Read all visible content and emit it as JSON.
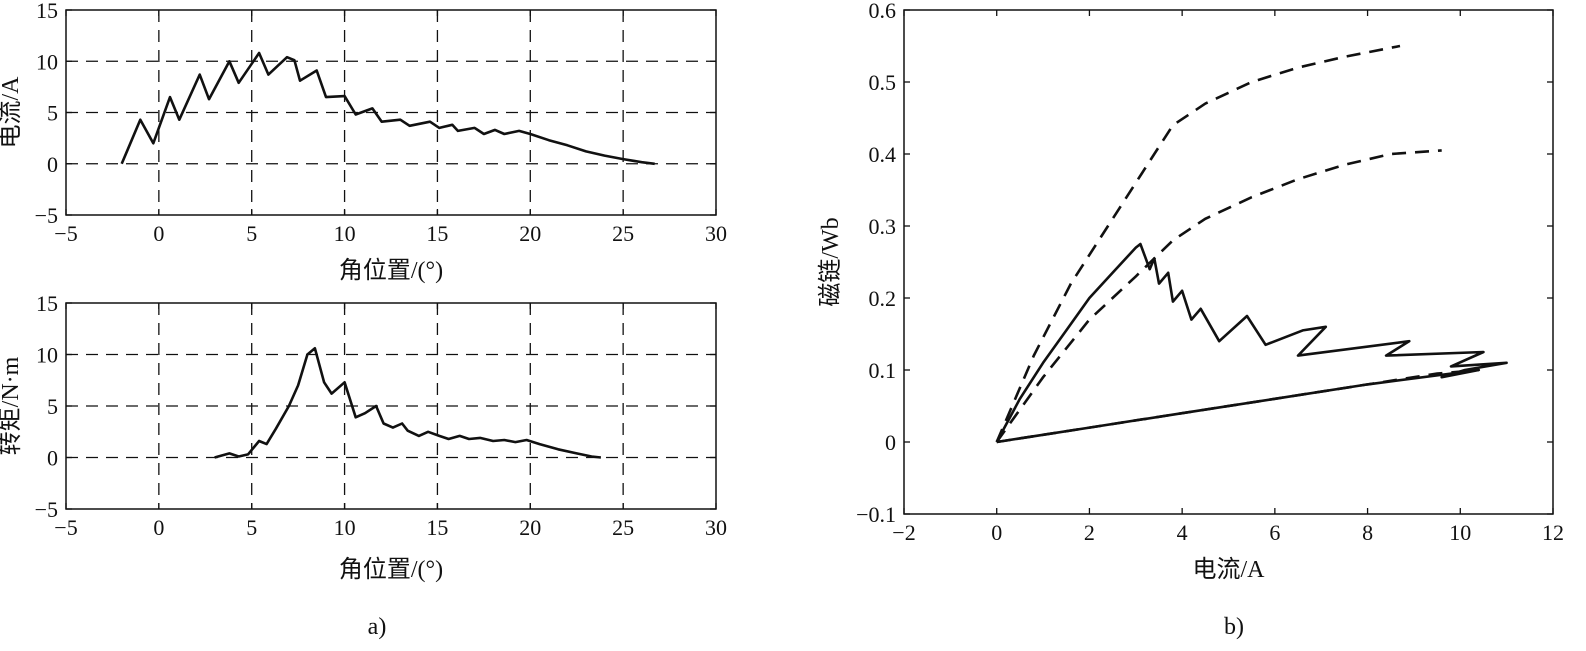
{
  "captions": {
    "a": "a)",
    "b": "b)"
  },
  "chart_data": [
    {
      "id": "current",
      "type": "line",
      "xlabel": "角位置/(°)",
      "ylabel": "电流/A",
      "xlim": [
        -5,
        30
      ],
      "ylim": [
        -5,
        15
      ],
      "xticks": [
        "−5",
        "0",
        "5",
        "10",
        "15",
        "20",
        "25",
        "30"
      ],
      "yticks": [
        "−5",
        "0",
        "5",
        "10",
        "15"
      ],
      "grid": "dashed",
      "series": [
        {
          "style": "solid",
          "points": [
            [
              -2,
              0
            ],
            [
              -1,
              4.3
            ],
            [
              -0.3,
              2
            ],
            [
              0.6,
              6.5
            ],
            [
              1.1,
              4.3
            ],
            [
              2.2,
              8.7
            ],
            [
              2.7,
              6.3
            ],
            [
              3.8,
              10
            ],
            [
              4.3,
              7.9
            ],
            [
              5.4,
              10.8
            ],
            [
              5.9,
              8.7
            ],
            [
              6.9,
              10.4
            ],
            [
              7.3,
              10.1
            ],
            [
              7.6,
              8.1
            ],
            [
              8.5,
              9.1
            ],
            [
              9,
              6.5
            ],
            [
              10,
              6.6
            ],
            [
              10.6,
              4.8
            ],
            [
              11.5,
              5.4
            ],
            [
              12,
              4.1
            ],
            [
              13,
              4.3
            ],
            [
              13.5,
              3.7
            ],
            [
              14.6,
              4.1
            ],
            [
              15.1,
              3.5
            ],
            [
              15.8,
              3.8
            ],
            [
              16.1,
              3.2
            ],
            [
              17,
              3.5
            ],
            [
              17.5,
              2.9
            ],
            [
              18.1,
              3.3
            ],
            [
              18.6,
              2.9
            ],
            [
              19.4,
              3.2
            ],
            [
              20,
              2.9
            ],
            [
              21,
              2.3
            ],
            [
              22,
              1.8
            ],
            [
              23,
              1.2
            ],
            [
              24,
              0.8
            ],
            [
              25,
              0.45
            ],
            [
              26,
              0.15
            ],
            [
              26.7,
              0
            ]
          ]
        }
      ]
    },
    {
      "id": "torque",
      "type": "line",
      "xlabel": "角位置/(°)",
      "ylabel": "转矩/N·m",
      "xlim": [
        -5,
        30
      ],
      "ylim": [
        -5,
        15
      ],
      "xticks": [
        "−5",
        "0",
        "5",
        "10",
        "15",
        "20",
        "25",
        "30"
      ],
      "yticks": [
        "−5",
        "0",
        "5",
        "10",
        "15"
      ],
      "grid": "dashed",
      "series": [
        {
          "style": "solid",
          "points": [
            [
              3,
              0
            ],
            [
              3.8,
              0.4
            ],
            [
              4.3,
              0.1
            ],
            [
              4.8,
              0.3
            ],
            [
              5.4,
              1.6
            ],
            [
              5.8,
              1.3
            ],
            [
              6.3,
              2.8
            ],
            [
              7,
              5
            ],
            [
              7.5,
              7
            ],
            [
              8,
              10
            ],
            [
              8.4,
              10.6
            ],
            [
              8.9,
              7.3
            ],
            [
              9.3,
              6.2
            ],
            [
              10,
              7.3
            ],
            [
              10.6,
              3.9
            ],
            [
              11.1,
              4.3
            ],
            [
              11.7,
              5
            ],
            [
              12.1,
              3.3
            ],
            [
              12.6,
              2.9
            ],
            [
              13.1,
              3.3
            ],
            [
              13.4,
              2.6
            ],
            [
              14,
              2.1
            ],
            [
              14.5,
              2.5
            ],
            [
              15.1,
              2.1
            ],
            [
              15.6,
              1.8
            ],
            [
              16.2,
              2.1
            ],
            [
              16.7,
              1.8
            ],
            [
              17.3,
              1.9
            ],
            [
              18,
              1.6
            ],
            [
              18.6,
              1.7
            ],
            [
              19.2,
              1.5
            ],
            [
              19.8,
              1.7
            ],
            [
              20.5,
              1.3
            ],
            [
              21.5,
              0.8
            ],
            [
              22.5,
              0.4
            ],
            [
              23.3,
              0.1
            ],
            [
              23.8,
              0
            ]
          ]
        }
      ]
    },
    {
      "id": "flux",
      "type": "line",
      "xlabel": "电流/A",
      "ylabel": "磁链/Wb",
      "xlim": [
        -2,
        12
      ],
      "ylim": [
        -0.1,
        0.6
      ],
      "xticks": [
        "−2",
        "0",
        "2",
        "4",
        "6",
        "8",
        "10",
        "12"
      ],
      "yticks": [
        "−0.1",
        "0",
        "0.1",
        "0.2",
        "0.3",
        "0.4",
        "0.5",
        "0.6"
      ],
      "grid": "none",
      "series": [
        {
          "style": "dashed",
          "points": [
            [
              0,
              0
            ],
            [
              0.8,
              0.12
            ],
            [
              1.6,
              0.22
            ],
            [
              2.4,
              0.3
            ],
            [
              3,
              0.36
            ],
            [
              3.4,
              0.4
            ],
            [
              3.8,
              0.44
            ],
            [
              4.5,
              0.47
            ],
            [
              5.5,
              0.5
            ],
            [
              6.5,
              0.52
            ],
            [
              7.5,
              0.535
            ],
            [
              8.7,
              0.55
            ]
          ]
        },
        {
          "style": "dashed",
          "points": [
            [
              0,
              0
            ],
            [
              1,
              0.09
            ],
            [
              2,
              0.17
            ],
            [
              3,
              0.23
            ],
            [
              3.8,
              0.28
            ],
            [
              4.5,
              0.31
            ],
            [
              5.5,
              0.34
            ],
            [
              6.5,
              0.365
            ],
            [
              7.5,
              0.385
            ],
            [
              8.5,
              0.4
            ],
            [
              9.6,
              0.405
            ]
          ]
        },
        {
          "style": "dashed",
          "points": [
            [
              0,
              0
            ],
            [
              2,
              0.02
            ],
            [
              4,
              0.04
            ],
            [
              6,
              0.06
            ],
            [
              8,
              0.08
            ],
            [
              9.5,
              0.095
            ],
            [
              10.4,
              0.1
            ]
          ]
        },
        {
          "style": "solid",
          "points": [
            [
              0,
              0
            ],
            [
              0.5,
              0.06
            ],
            [
              1,
              0.11
            ],
            [
              1.5,
              0.155
            ],
            [
              2,
              0.2
            ],
            [
              2.5,
              0.235
            ],
            [
              3,
              0.27
            ],
            [
              3.1,
              0.275
            ],
            [
              3.3,
              0.24
            ],
            [
              3.4,
              0.255
            ],
            [
              3.5,
              0.22
            ],
            [
              3.7,
              0.235
            ],
            [
              3.8,
              0.195
            ],
            [
              4,
              0.21
            ],
            [
              4.2,
              0.17
            ],
            [
              4.4,
              0.185
            ],
            [
              4.8,
              0.14
            ],
            [
              5.4,
              0.175
            ],
            [
              5.8,
              0.135
            ],
            [
              6.6,
              0.155
            ],
            [
              7.1,
              0.16
            ],
            [
              6.5,
              0.12
            ],
            [
              8.9,
              0.14
            ],
            [
              8.4,
              0.12
            ],
            [
              10.5,
              0.125
            ],
            [
              9.8,
              0.105
            ],
            [
              11,
              0.11
            ],
            [
              10.1,
              0.1
            ],
            [
              9.6,
              0.09
            ],
            [
              10.4,
              0.1
            ],
            [
              8,
              0.08
            ],
            [
              6,
              0.06
            ],
            [
              4,
              0.04
            ],
            [
              2,
              0.02
            ],
            [
              0,
              0
            ]
          ]
        }
      ]
    }
  ]
}
